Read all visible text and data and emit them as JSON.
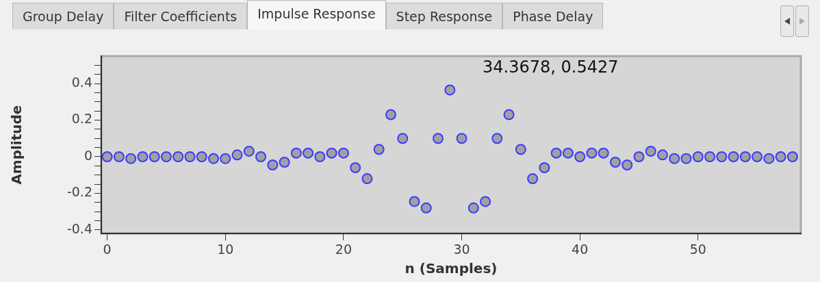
{
  "chart_data": {
    "type": "scatter",
    "xlabel": "n (Samples)",
    "ylabel": "Amplitude",
    "x": [
      0,
      1,
      2,
      3,
      4,
      5,
      6,
      7,
      8,
      9,
      10,
      11,
      12,
      13,
      14,
      15,
      16,
      17,
      18,
      19,
      20,
      21,
      22,
      23,
      24,
      25,
      26,
      27,
      28,
      29,
      30,
      31,
      32,
      33,
      34,
      35,
      36,
      37,
      38,
      39,
      40,
      41,
      42,
      43,
      44,
      45,
      46,
      47,
      48,
      49,
      50,
      51,
      52,
      53,
      54,
      55,
      56,
      57,
      58
    ],
    "series": [
      {
        "color": "#3a3aff",
        "values": [
          0,
          0,
          -0.01,
          0,
          0,
          0,
          0,
          0,
          0,
          -0.01,
          -0.01,
          0.01,
          0.03,
          0,
          -0.045,
          -0.03,
          0.02,
          0.02,
          0,
          0.02,
          0.02,
          -0.06,
          -0.12,
          0.04,
          0.23,
          0.1,
          -0.245,
          -0.28,
          0.1,
          0.365,
          0.1,
          -0.28,
          -0.245,
          0.1,
          0.23,
          0.04,
          -0.12,
          -0.06,
          0.02,
          0.02,
          0,
          0.02,
          0.02,
          -0.03,
          -0.045,
          0,
          0.03,
          0.01,
          -0.01,
          -0.01,
          0,
          0,
          0,
          0,
          0,
          0,
          -0.01,
          0,
          0
        ]
      }
    ],
    "marker": "circle",
    "grid": false,
    "legend": false,
    "xlim": [
      -0.5,
      58.7
    ],
    "xticks": [
      0,
      10,
      20,
      30,
      40,
      50
    ],
    "ylim": [
      -0.42,
      0.55
    ],
    "yticks": [
      {
        "value": -0.4,
        "label": "-0.4"
      },
      {
        "value": -0.35,
        "label": null
      },
      {
        "value": -0.3,
        "label": null
      },
      {
        "value": -0.25,
        "label": null
      },
      {
        "value": -0.2,
        "label": "-0.2"
      },
      {
        "value": -0.15,
        "label": null
      },
      {
        "value": -0.1,
        "label": null
      },
      {
        "value": -0.05,
        "label": null
      },
      {
        "value": 0,
        "label": "0"
      },
      {
        "value": 0.05,
        "label": null
      },
      {
        "value": 0.1,
        "label": null
      },
      {
        "value": 0.15,
        "label": null
      },
      {
        "value": 0.2,
        "label": "0.2"
      },
      {
        "value": 0.25,
        "label": null
      },
      {
        "value": 0.3,
        "label": null
      },
      {
        "value": 0.35,
        "label": null
      },
      {
        "value": 0.4,
        "label": "0.4"
      },
      {
        "value": 0.45,
        "label": null
      },
      {
        "value": 0.5,
        "label": null
      }
    ],
    "annotations": [
      "Group Delay",
      "Filter Coefficients",
      "Impulse Response",
      "Step Response",
      "Phase Delay",
      "34.3678, 0.5427"
    ]
  }
}
